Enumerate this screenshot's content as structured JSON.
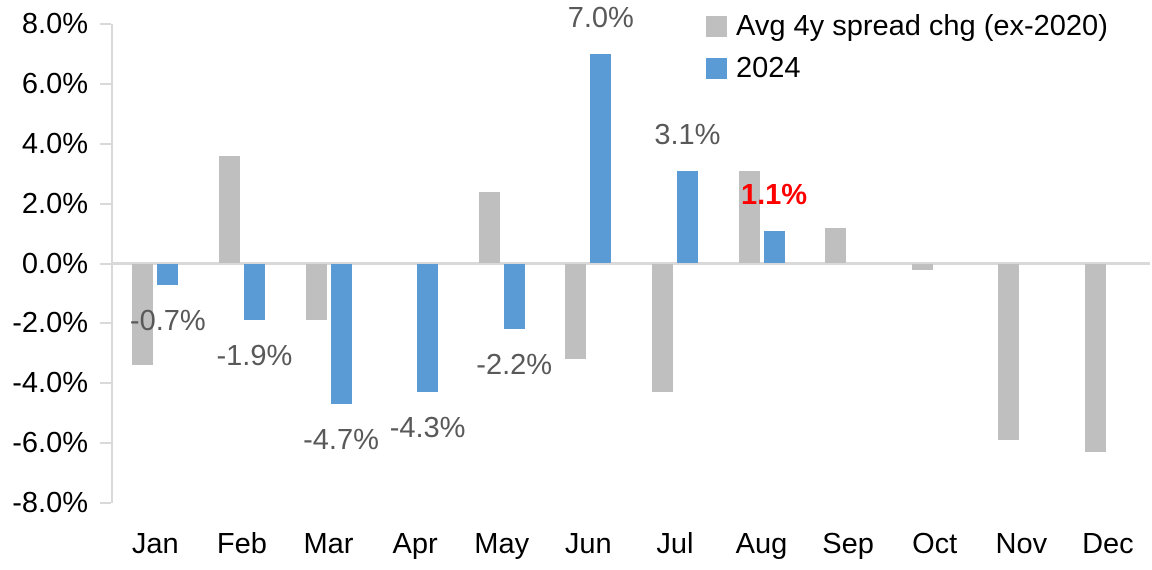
{
  "chart_data": {
    "type": "bar",
    "title": "",
    "xlabel": "",
    "ylabel": "",
    "categories": [
      "Jan",
      "Feb",
      "Mar",
      "Apr",
      "May",
      "Jun",
      "Jul",
      "Aug",
      "Sep",
      "Oct",
      "Nov",
      "Dec"
    ],
    "series": [
      {
        "key": "avg",
        "name": "Avg 4y spread chg (ex-2020)",
        "color": "#BFBFBF",
        "values": [
          -3.4,
          3.6,
          -1.9,
          0.0,
          2.4,
          -3.2,
          -4.3,
          3.1,
          1.2,
          -0.2,
          -5.9,
          -6.3
        ]
      },
      {
        "key": "y2024",
        "name": "2024",
        "color": "#5B9BD5",
        "values": [
          -0.7,
          -1.9,
          -4.7,
          -4.3,
          -2.2,
          7.0,
          3.1,
          1.1,
          null,
          null,
          null,
          null
        ]
      }
    ],
    "data_labels": [
      {
        "month": "Jan",
        "month_index": 0,
        "text": "-0.7%",
        "color": "#595959",
        "bold": false
      },
      {
        "month": "Feb",
        "month_index": 1,
        "text": "-1.9%",
        "color": "#595959",
        "bold": false
      },
      {
        "month": "Mar",
        "month_index": 2,
        "text": "-4.7%",
        "color": "#595959",
        "bold": false
      },
      {
        "month": "Apr",
        "month_index": 3,
        "text": "-4.3%",
        "color": "#595959",
        "bold": false
      },
      {
        "month": "May",
        "month_index": 4,
        "text": "-2.2%",
        "color": "#595959",
        "bold": false
      },
      {
        "month": "Jun",
        "month_index": 5,
        "text": "7.0%",
        "color": "#595959",
        "bold": false
      },
      {
        "month": "Jul",
        "month_index": 6,
        "text": "3.1%",
        "color": "#595959",
        "bold": false
      },
      {
        "month": "Aug",
        "month_index": 7,
        "text": "1.1%",
        "color": "#FF0000",
        "bold": true
      }
    ],
    "yaxis": {
      "min": -8,
      "max": 8,
      "step": 2,
      "ticks": [
        {
          "value": 8,
          "label": "8.0%"
        },
        {
          "value": 6,
          "label": "6.0%"
        },
        {
          "value": 4,
          "label": "4.0%"
        },
        {
          "value": 2,
          "label": "2.0%"
        },
        {
          "value": 0,
          "label": "0.0%"
        },
        {
          "value": -2,
          "label": "-2.0%"
        },
        {
          "value": -4,
          "label": "-4.0%"
        },
        {
          "value": -6,
          "label": "-6.0%"
        },
        {
          "value": -8,
          "label": "-8.0%"
        }
      ],
      "gridlines": "zero-only"
    },
    "legend": {
      "position": "top-right"
    },
    "colors": {
      "bar_avg": "#BFBFBF",
      "bar_2024": "#5B9BD5",
      "axis_line": "#D9D9D9",
      "zero_line": "#D9D9D9",
      "axis_text": "#000000",
      "data_label": "#595959",
      "highlight": "#FF0000",
      "background": "#FFFFFF"
    }
  }
}
